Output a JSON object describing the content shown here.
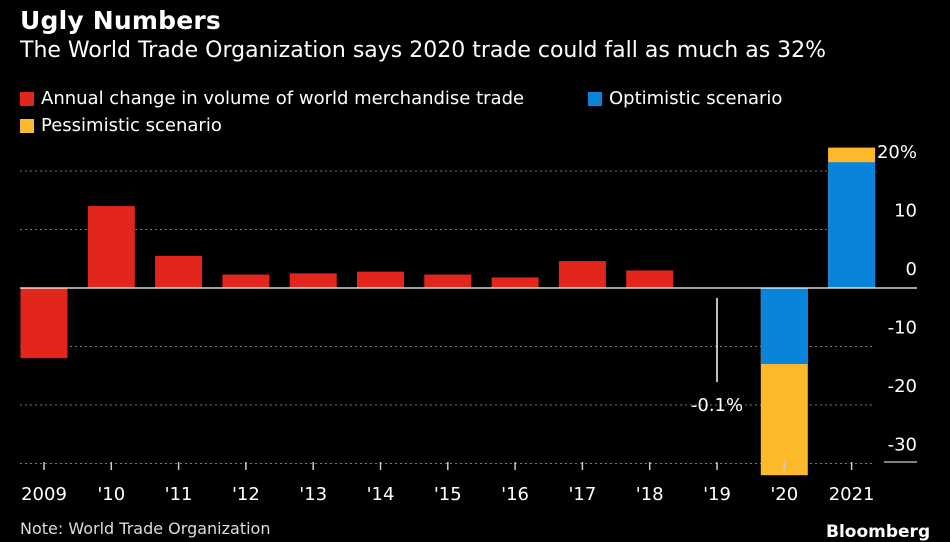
{
  "chart_data": {
    "type": "bar",
    "title": "Ugly Numbers",
    "subtitle": "The World Trade Organization says 2020 trade could fall as much as 32%",
    "categories": [
      "2009",
      "'10",
      "'11",
      "'12",
      "'13",
      "'14",
      "'15",
      "'16",
      "'17",
      "'18",
      "'19",
      "'20",
      "2021"
    ],
    "series": [
      {
        "name": "Annual change in volume of world merchandise trade",
        "color": "#e3261c",
        "values": [
          -12.0,
          14.0,
          5.5,
          2.3,
          2.5,
          2.8,
          2.3,
          1.8,
          4.6,
          3.0,
          -0.1,
          null,
          null
        ]
      },
      {
        "name": "Optimistic scenario",
        "color": "#0a84db",
        "values": [
          null,
          null,
          null,
          null,
          null,
          null,
          null,
          null,
          null,
          null,
          null,
          -13.0,
          21.5
        ]
      },
      {
        "name": "Pessimistic scenario",
        "color": "#fcb92b",
        "values": [
          null,
          null,
          null,
          null,
          null,
          null,
          null,
          null,
          null,
          null,
          null,
          -32.0,
          24.0
        ]
      }
    ],
    "annotation": {
      "category": "'19",
      "text": "-0.1%"
    },
    "yticks": [
      "20%",
      "10",
      "0",
      "-10",
      "-20",
      "-30"
    ],
    "ytick_values": [
      20,
      10,
      0,
      -10,
      -20,
      -30
    ],
    "ylim": [
      -32,
      24
    ],
    "grid": true,
    "legend": "top-left"
  },
  "footer": {
    "note": "Note: World Trade Organization",
    "brand": "Bloomberg"
  }
}
